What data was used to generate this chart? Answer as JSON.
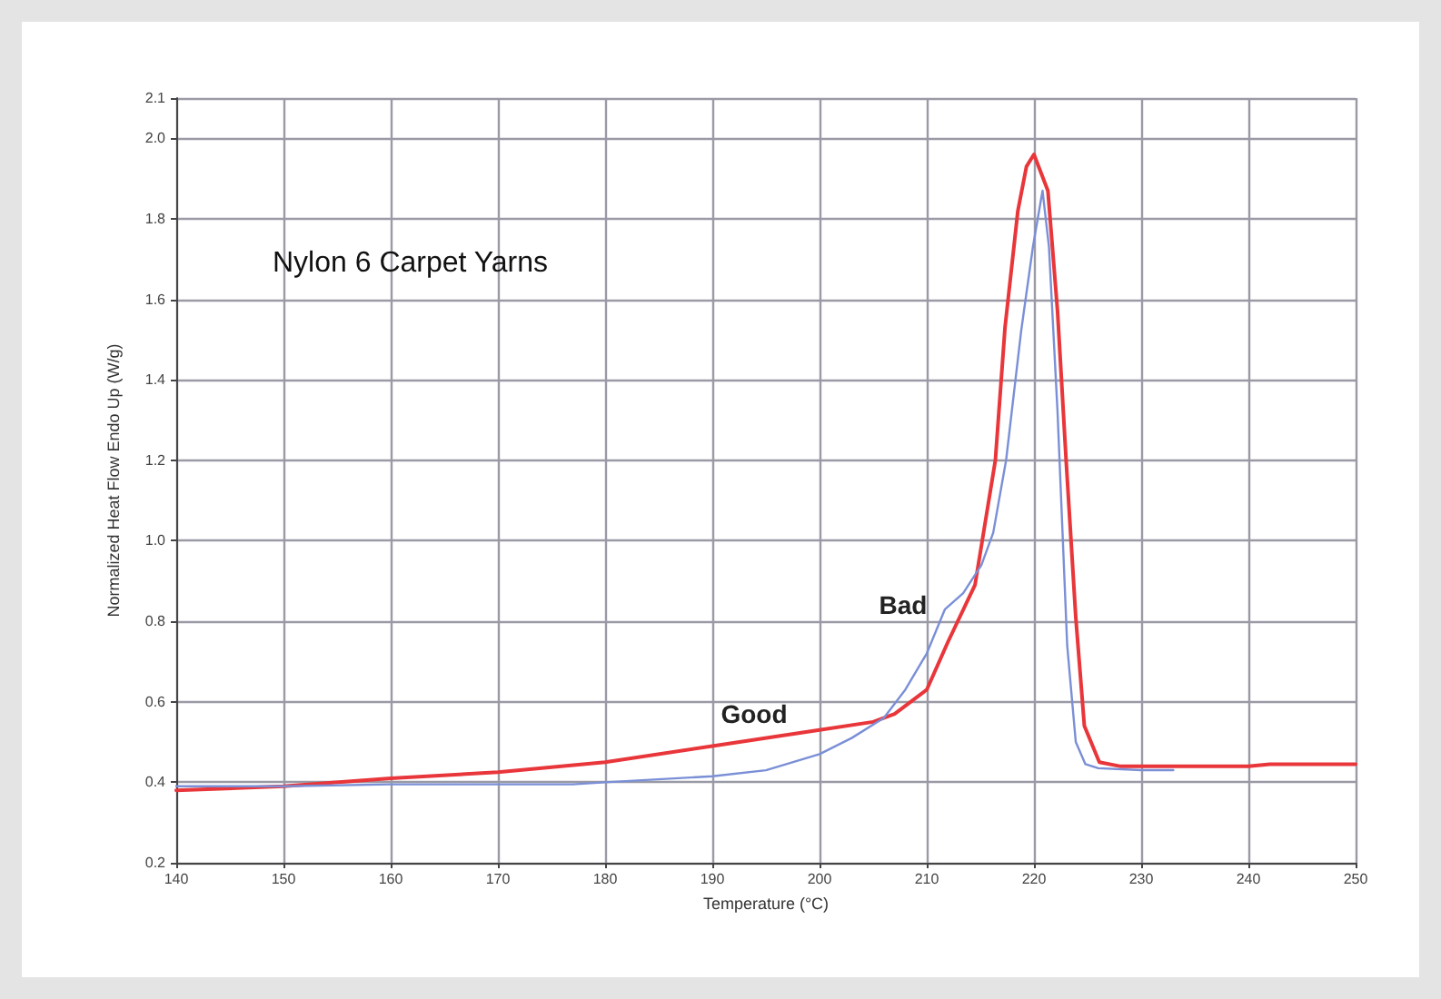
{
  "chart_data": {
    "type": "line",
    "title": "Nylon 6 Carpet Yarns",
    "xlabel": "Temperature (°C)",
    "ylabel": "Normalized Heat Flow Endo Up (W/g)",
    "xlim": [
      140,
      250
    ],
    "xticks": [
      140,
      150,
      160,
      170,
      180,
      190,
      200,
      210,
      220,
      230,
      240,
      250
    ],
    "ylim": [
      0.2,
      2.1
    ],
    "yticks": [
      0.2,
      0.4,
      0.6,
      0.8,
      {
        "value": 1.0,
        "label": "1.0"
      },
      1.2,
      1.4,
      1.6,
      1.8,
      {
        "value": 2.0,
        "label": "2.0"
      },
      2.1
    ],
    "grid": true,
    "marker": "none",
    "line_style": "solid",
    "series": [
      {
        "color": "#e8363a",
        "x": [
          140,
          150,
          160,
          170,
          180,
          190,
          200,
          205,
          207,
          210,
          212,
          214.5,
          216.4,
          217.3,
          218.5,
          219.3,
          220,
          221.3,
          222.2,
          223,
          223.9,
          224.7,
          226.1,
          228,
          240,
          242,
          250
        ],
        "values": [
          0.38,
          0.39,
          0.41,
          0.425,
          0.45,
          0.49,
          0.53,
          0.55,
          0.57,
          0.63,
          0.75,
          0.89,
          1.2,
          1.53,
          1.82,
          1.93,
          1.96,
          1.87,
          1.57,
          1.2,
          0.81,
          0.54,
          0.45,
          0.44,
          0.44,
          0.445,
          0.445
        ]
      },
      {
        "color": "#7a8fd6",
        "x": [
          140,
          150,
          160,
          170,
          177,
          180,
          190,
          195,
          200,
          203,
          206,
          208,
          210,
          211.7,
          213.4,
          215.1,
          216.2,
          217.4,
          218.8,
          219.9,
          220.8,
          221.4,
          222.2,
          223.1,
          223.9,
          224.8,
          226,
          230,
          233
        ],
        "values": [
          0.39,
          0.39,
          0.395,
          0.395,
          0.395,
          0.4,
          0.415,
          0.43,
          0.47,
          0.51,
          0.56,
          0.63,
          0.72,
          0.83,
          0.87,
          0.94,
          1.02,
          1.2,
          1.52,
          1.73,
          1.87,
          1.73,
          1.32,
          0.74,
          0.5,
          0.445,
          0.435,
          0.43,
          0.43
        ]
      }
    ],
    "annotations": [
      "Good",
      "Bad"
    ]
  }
}
